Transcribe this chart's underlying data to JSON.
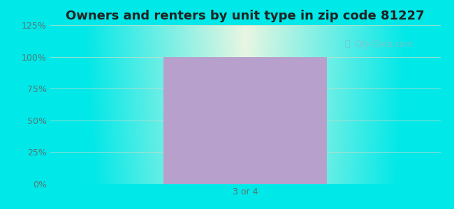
{
  "title": "Owners and renters by unit type in zip code 81227",
  "categories": [
    "3 or 4"
  ],
  "values": [
    100
  ],
  "bar_color": "#b8a0cc",
  "bar_alpha": 1.0,
  "ylim": [
    0,
    125
  ],
  "yticks": [
    0,
    25,
    50,
    75,
    100,
    125
  ],
  "ytick_labels": [
    "0%",
    "25%",
    "50%",
    "75%",
    "100%",
    "125%"
  ],
  "title_fontsize": 13,
  "tick_fontsize": 9,
  "watermark": "City-Data.com",
  "bg_outer_color": "#00e8e8",
  "gridline_color": "#ccddcc",
  "gridline_alpha": 0.7,
  "tick_color": "#557777"
}
